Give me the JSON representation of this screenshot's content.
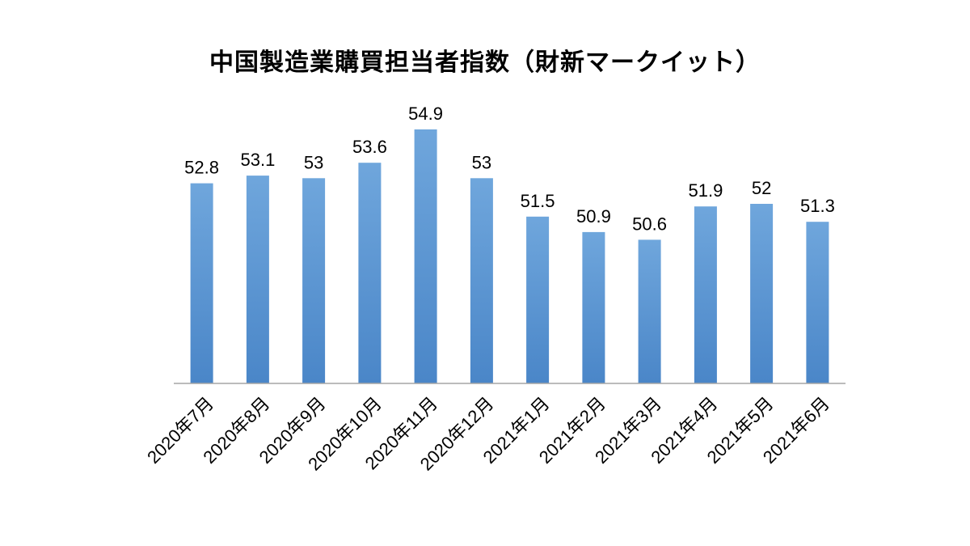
{
  "chart_data": {
    "type": "bar",
    "title": "中国製造業購買担当者指数（財新マークイット）",
    "xlabel": "",
    "ylabel": "",
    "ylim": [
      45,
      56
    ],
    "grid": false,
    "categories": [
      "2020年7月",
      "2020年8月",
      "2020年9月",
      "2020年10月",
      "2020年11月",
      "2020年12月",
      "2021年1月",
      "2021年2月",
      "2021年3月",
      "2021年4月",
      "2021年5月",
      "2021年6月"
    ],
    "values": [
      52.8,
      53.1,
      53,
      53.6,
      54.9,
      53,
      51.5,
      50.9,
      50.6,
      51.9,
      52,
      51.3
    ],
    "value_labels": [
      "52.8",
      "53.1",
      "53",
      "53.6",
      "54.9",
      "53",
      "51.5",
      "50.9",
      "50.6",
      "51.9",
      "52",
      "51.3"
    ],
    "colors": {
      "bar_top": "#6fa6dc",
      "bar_bottom": "#4a86c8",
      "axis": "#a6a6a6",
      "text": "#000000"
    }
  }
}
